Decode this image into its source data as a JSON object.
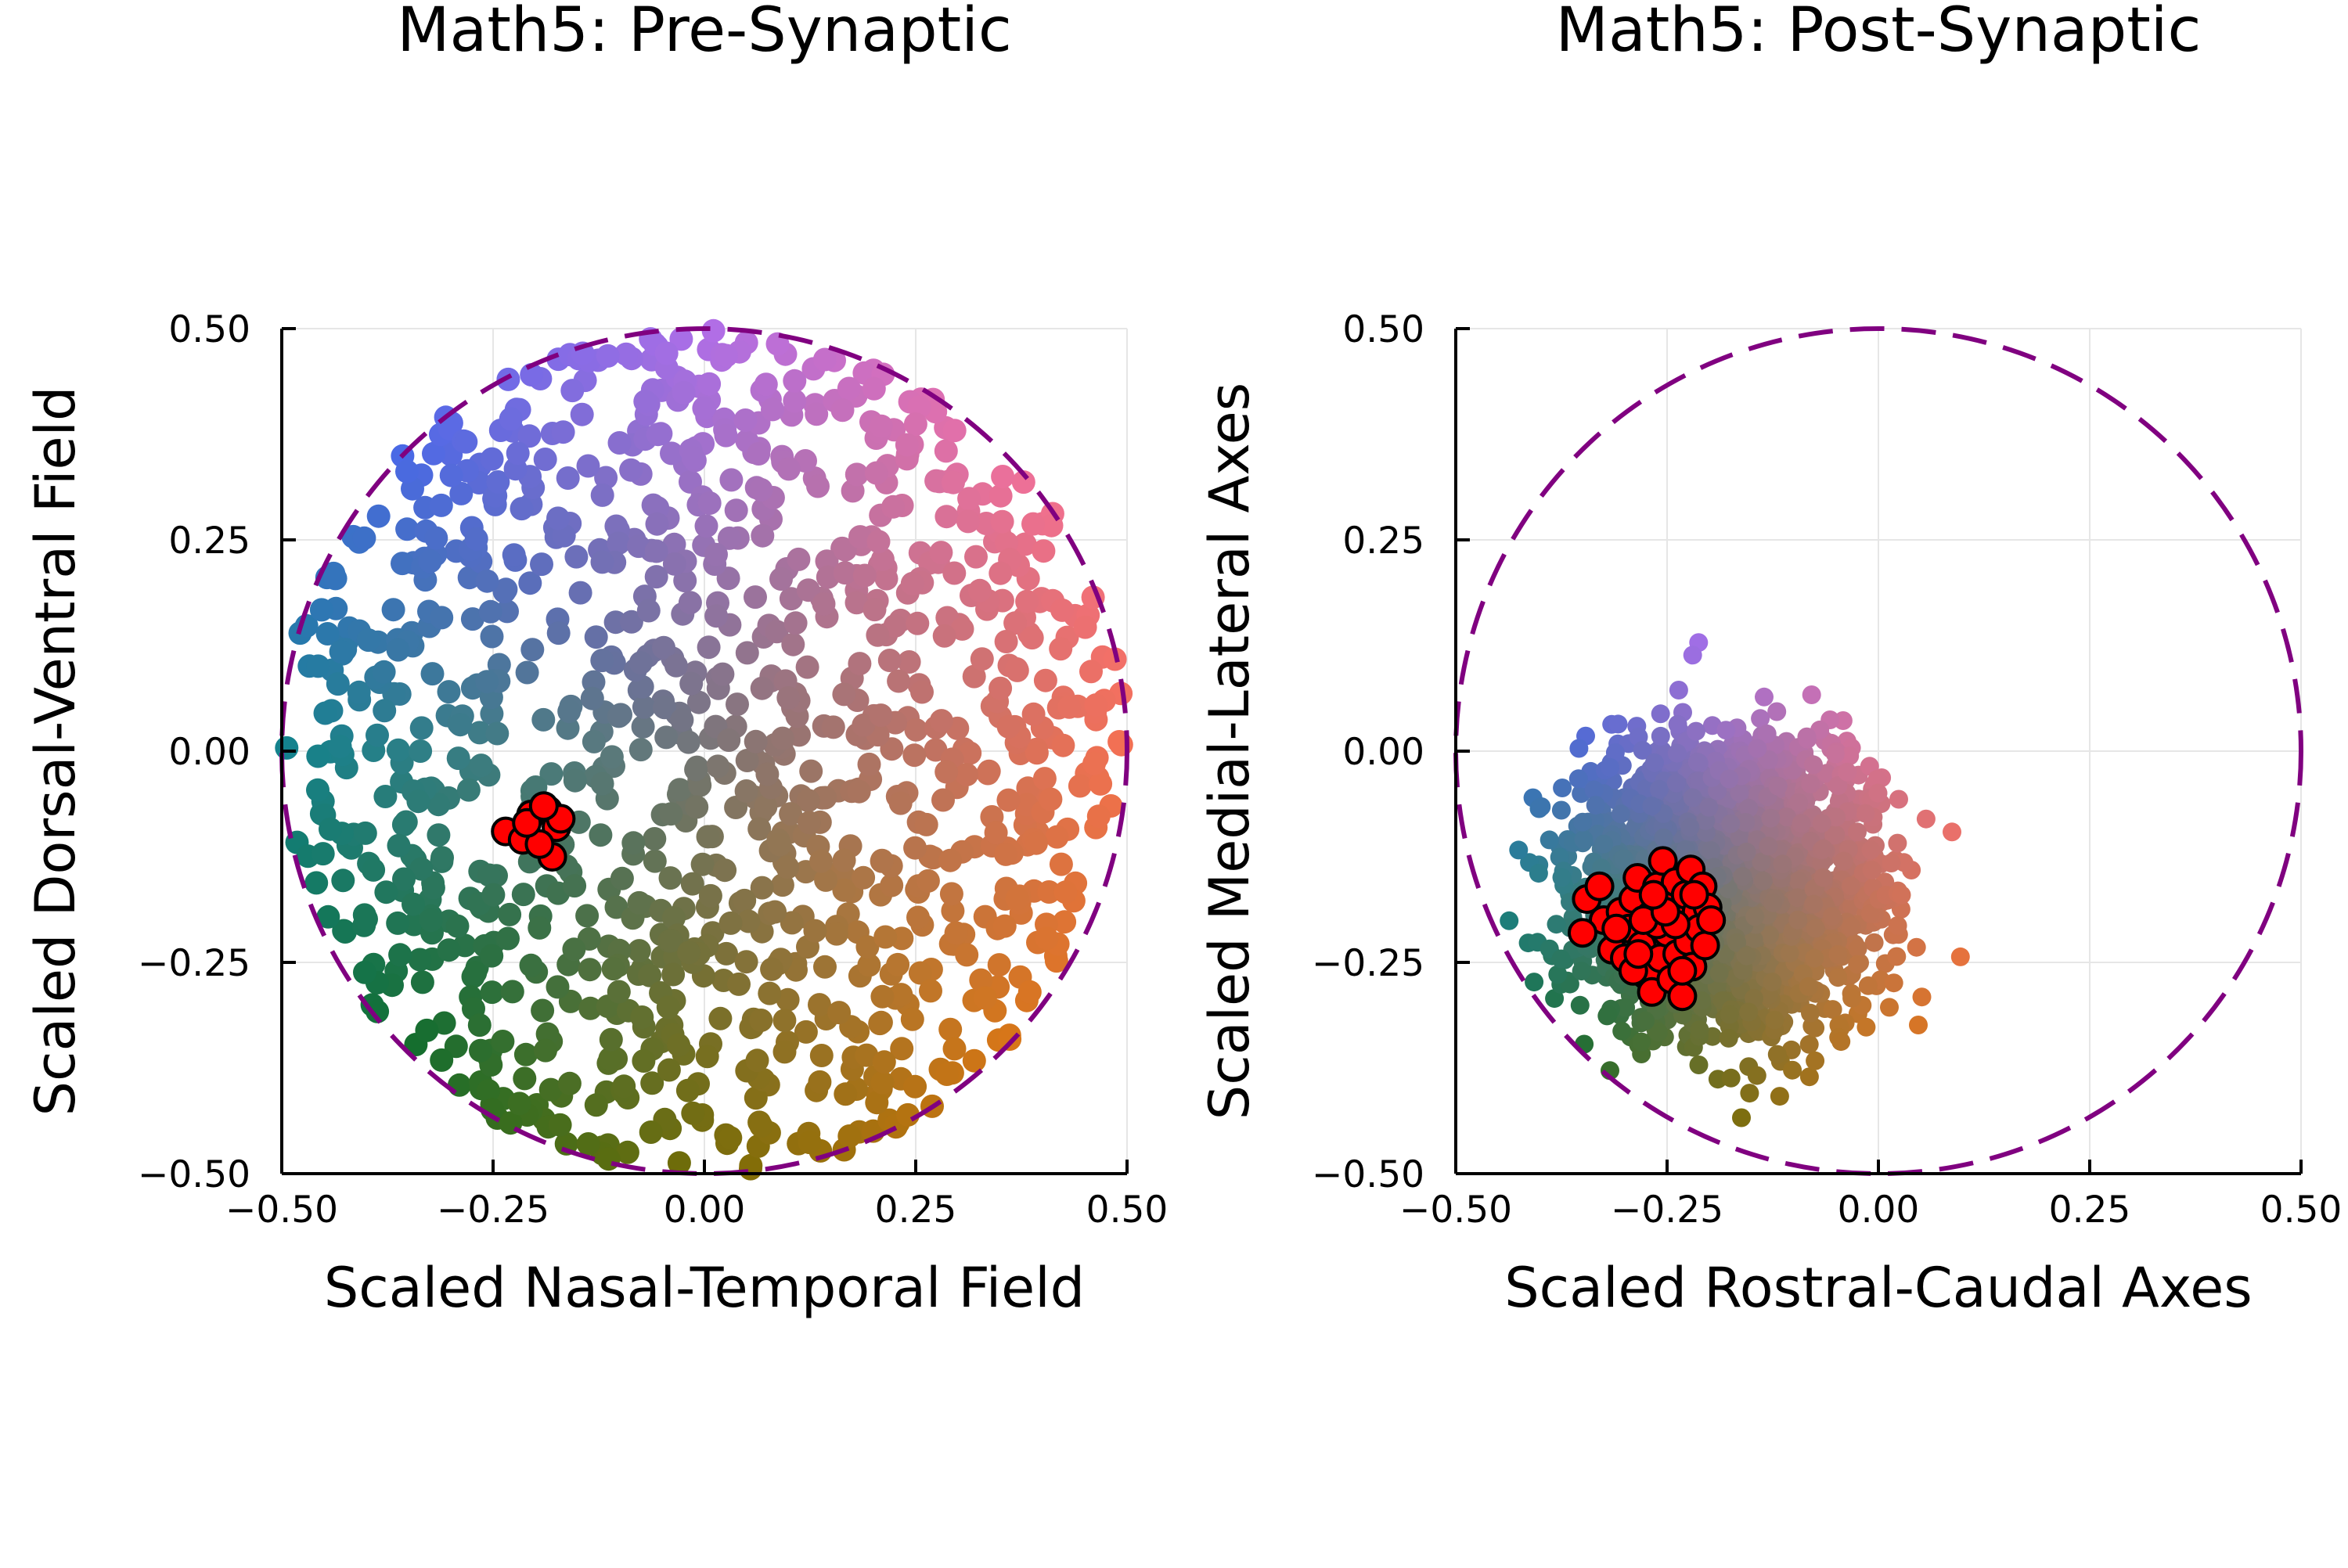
{
  "chart_data": [
    {
      "type": "scatter",
      "title": "Math5: Pre-Synaptic",
      "xlabel": "Scaled Nasal-Temporal Field",
      "ylabel": "Scaled Dorsal-Ventral Field",
      "xlim": [
        -0.5,
        0.5
      ],
      "ylim": [
        -0.5,
        0.5
      ],
      "xticks": [
        "−0.50",
        "−0.25",
        "0.00",
        "0.25",
        "0.50"
      ],
      "yticks": [
        "−0.50",
        "−0.25",
        "0.00",
        "0.25",
        "0.50"
      ],
      "tick_values": [
        -0.5,
        -0.25,
        0.0,
        0.25,
        0.5
      ],
      "grid": true,
      "legend": "none",
      "boundary_circle": {
        "center": [
          0.0,
          0.0
        ],
        "radius": 0.5,
        "style": "dashed",
        "color": "#800080"
      },
      "background_series": {
        "description": "dense field of points colored by angular position (hue) with saturation rising toward the rim",
        "count_estimate": 1100,
        "distribution": {
          "type": "uniform-disk",
          "center": [
            0.0,
            0.0
          ],
          "radius": 0.5,
          "spread": [
            1.0,
            1.0
          ]
        },
        "color_encoding": "hue by angle, chroma by radius",
        "marker": "filled-circle"
      },
      "highlight_series": {
        "color": "#ff0000",
        "edge_color": "#000000",
        "points": [
          [
            -0.235,
            -0.095
          ],
          [
            -0.215,
            -0.105
          ],
          [
            -0.205,
            -0.075
          ],
          [
            -0.185,
            -0.07
          ],
          [
            -0.175,
            -0.09
          ],
          [
            -0.18,
            -0.125
          ],
          [
            -0.195,
            -0.11
          ],
          [
            -0.17,
            -0.08
          ],
          [
            -0.21,
            -0.085
          ],
          [
            -0.19,
            -0.065
          ]
        ]
      }
    },
    {
      "type": "scatter",
      "title": "Math5: Post-Synaptic",
      "xlabel": "Scaled Rostral-Caudal Axes",
      "ylabel": "Scaled Medial-Lateral Axes",
      "xlim": [
        -0.5,
        0.5
      ],
      "ylim": [
        -0.5,
        0.5
      ],
      "xticks": [
        "−0.50",
        "−0.25",
        "0.00",
        "0.25",
        "0.50"
      ],
      "yticks": [
        "−0.50",
        "−0.25",
        "0.00",
        "0.25",
        "0.50"
      ],
      "tick_values": [
        -0.5,
        -0.25,
        0.0,
        0.25,
        0.5
      ],
      "grid": true,
      "legend": "none",
      "boundary_circle": {
        "center": [
          0.0,
          0.0
        ],
        "radius": 0.5,
        "style": "dashed",
        "color": "#800080"
      },
      "background_series": {
        "description": "dense cloud of points colored by angular position (hue) with saturation rising toward the rim",
        "count_estimate": 2600,
        "distribution": {
          "type": "gaussian-blob",
          "center": [
            -0.18,
            -0.16
          ],
          "radius": 0.3,
          "spread": [
            0.5,
            0.49
          ]
        },
        "color_encoding": "hue by angle, chroma by radius",
        "marker": "filled-circle"
      },
      "highlight_series": {
        "color": "#ff0000",
        "edge_color": "#000000",
        "points": [
          [
            -0.345,
            -0.175
          ],
          [
            -0.33,
            -0.16
          ],
          [
            -0.325,
            -0.2
          ],
          [
            -0.35,
            -0.215
          ],
          [
            -0.315,
            -0.235
          ],
          [
            -0.305,
            -0.19
          ],
          [
            -0.3,
            -0.245
          ],
          [
            -0.295,
            -0.21
          ],
          [
            -0.29,
            -0.175
          ],
          [
            -0.285,
            -0.15
          ],
          [
            -0.28,
            -0.23
          ],
          [
            -0.275,
            -0.265
          ],
          [
            -0.27,
            -0.195
          ],
          [
            -0.268,
            -0.285
          ],
          [
            -0.262,
            -0.16
          ],
          [
            -0.258,
            -0.245
          ],
          [
            -0.255,
            -0.13
          ],
          [
            -0.25,
            -0.215
          ],
          [
            -0.248,
            -0.18
          ],
          [
            -0.245,
            -0.27
          ],
          [
            -0.24,
            -0.155
          ],
          [
            -0.238,
            -0.24
          ],
          [
            -0.235,
            -0.2
          ],
          [
            -0.232,
            -0.29
          ],
          [
            -0.228,
            -0.17
          ],
          [
            -0.225,
            -0.225
          ],
          [
            -0.222,
            -0.14
          ],
          [
            -0.22,
            -0.255
          ],
          [
            -0.215,
            -0.19
          ],
          [
            -0.212,
            -0.21
          ],
          [
            -0.208,
            -0.16
          ],
          [
            -0.205,
            -0.23
          ],
          [
            -0.202,
            -0.185
          ],
          [
            -0.198,
            -0.2
          ],
          [
            -0.262,
            -0.205
          ],
          [
            -0.278,
            -0.2
          ],
          [
            -0.29,
            -0.26
          ],
          [
            -0.31,
            -0.21
          ],
          [
            -0.24,
            -0.205
          ],
          [
            -0.252,
            -0.19
          ],
          [
            -0.232,
            -0.26
          ],
          [
            -0.284,
            -0.24
          ],
          [
            -0.266,
            -0.17
          ],
          [
            -0.218,
            -0.17
          ]
        ]
      }
    }
  ]
}
